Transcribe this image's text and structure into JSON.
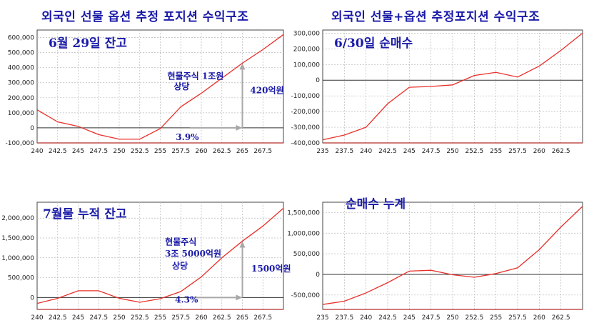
{
  "titles": {
    "left": "외국인 선물 옵션   추정 포지션 수익구조",
    "right": "외국인 선물+옵션 추정포지션 수익구조"
  },
  "colors": {
    "line": "#e8302a",
    "zero_line": "#333333",
    "grid": "#b8b8b8",
    "plot_bg": "#ffffff",
    "frame": "#444444",
    "label_text": "#1a1aa8",
    "arrow": "#a8a8a8"
  },
  "chart_data": [
    {
      "type": "line",
      "label": "6월 29일 잔고",
      "x": [
        240,
        242.5,
        245,
        247.5,
        250,
        252.5,
        255,
        257.5,
        260,
        262.5,
        265,
        267.5,
        270
      ],
      "series": [
        {
          "values": [
            120000,
            40000,
            10000,
            -45000,
            -75000,
            -75000,
            -5000,
            140000,
            230000,
            330000,
            430000,
            520000,
            620000
          ]
        }
      ],
      "xticks": [
        "240",
        "242.5",
        "245",
        "247.5",
        "250",
        "252.5",
        "255",
        "257.5",
        "260",
        "262.5",
        "265",
        "267.5"
      ],
      "yticks": [
        "600,000",
        "500,000",
        "400,000",
        "300,000",
        "200,000",
        "100,000",
        "0",
        "-100,000"
      ],
      "ylim": [
        -100000,
        650000
      ],
      "xlim": [
        240,
        270
      ],
      "annotations": [
        {
          "text": "현물주식 1조원",
          "x": 259.3,
          "y": 325000
        },
        {
          "text": "상당",
          "x": 257.6,
          "y": 255000
        },
        {
          "text": "420억원",
          "x": 268,
          "y": 230000
        },
        {
          "text": "3.9%",
          "x": 258.3,
          "y": -80000
        }
      ],
      "arrow_x": 265,
      "arrow_top": 430000
    },
    {
      "type": "line",
      "label": "6/30일 순매수",
      "x": [
        235,
        237.5,
        240,
        242.5,
        245,
        247.5,
        250,
        252.5,
        255,
        257.5,
        260,
        262.5,
        265
      ],
      "series": [
        {
          "values": [
            -380000,
            -350000,
            -300000,
            -150000,
            -45000,
            -40000,
            -30000,
            30000,
            50000,
            20000,
            90000,
            190000,
            300000
          ]
        }
      ],
      "xticks": [
        "235",
        "237.5",
        "240",
        "242.5",
        "245",
        "247.5",
        "250",
        "252.5",
        "255",
        "257.5",
        "260",
        "262.5"
      ],
      "yticks": [
        "300,000",
        "200,000",
        "100,000",
        "0",
        "-100,000",
        "-200,000",
        "-300,000",
        "-400,000"
      ],
      "ylim": [
        -400000,
        320000
      ],
      "xlim": [
        235,
        265
      ],
      "annotations": []
    },
    {
      "type": "line",
      "label": "7월물 누적 잔고",
      "x": [
        240,
        242.5,
        245,
        247.5,
        250,
        252.5,
        255,
        257.5,
        260,
        262.5,
        265,
        267.5,
        270
      ],
      "series": [
        {
          "values": [
            -150000,
            -20000,
            170000,
            170000,
            -20000,
            -120000,
            -30000,
            150000,
            520000,
            1000000,
            1420000,
            1800000,
            2250000
          ]
        }
      ],
      "xticks": [
        "240",
        "242.5",
        "245",
        "247.5",
        "250",
        "252.5",
        "255",
        "257.5",
        "260",
        "262.5",
        "265",
        "267.5"
      ],
      "yticks": [
        "2,000,000",
        "1,500,000",
        "1,000,000",
        "500,000",
        "0"
      ],
      "ylim": [
        -300000,
        2400000
      ],
      "xlim": [
        240,
        270
      ],
      "annotations": [
        {
          "text": "현물주식",
          "x": 257.5,
          "y": 1330000
        },
        {
          "text": "3조 5000억원",
          "x": 259,
          "y": 1030000
        },
        {
          "text": "상당",
          "x": 257.4,
          "y": 730000
        },
        {
          "text": "1500억원",
          "x": 268.5,
          "y": 650000
        },
        {
          "text": "4.3%",
          "x": 258.2,
          "y": -130000
        }
      ],
      "arrow_x": 265,
      "arrow_top": 1420000
    },
    {
      "type": "line",
      "label": "순매수 누계",
      "x": [
        235,
        237.5,
        240,
        242.5,
        245,
        247.5,
        250,
        252.5,
        255,
        257.5,
        260,
        262.5,
        265
      ],
      "series": [
        {
          "values": [
            -730000,
            -650000,
            -450000,
            -200000,
            80000,
            100000,
            -10000,
            -70000,
            20000,
            160000,
            600000,
            1150000,
            1650000
          ]
        }
      ],
      "xticks": [
        "235",
        "237.5",
        "240",
        "242.5",
        "245",
        "247.5",
        "250",
        "252.5",
        "255",
        "257.5",
        "260",
        "262.5"
      ],
      "yticks": [
        "1,500,000",
        "1,000,000",
        "500,000",
        "0",
        "-500,000"
      ],
      "ylim": [
        -850000,
        1750000
      ],
      "xlim": [
        235,
        265
      ],
      "annotations": []
    }
  ]
}
